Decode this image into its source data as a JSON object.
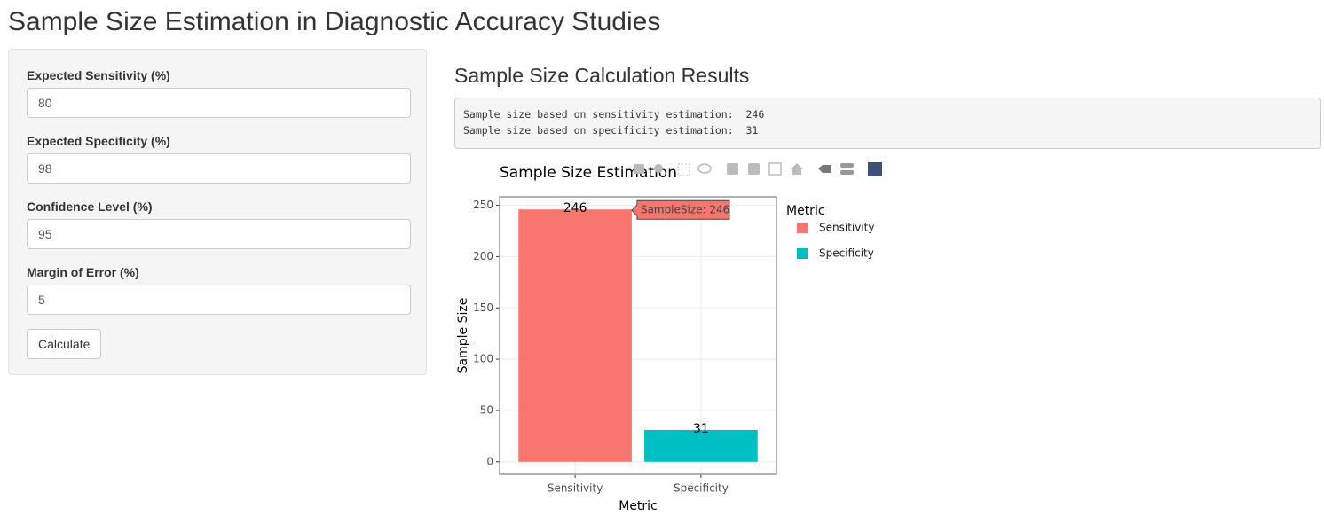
{
  "header": {
    "title": "Sample Size Estimation in Diagnostic Accuracy Studies"
  },
  "sidebar": {
    "inputs": [
      {
        "label": "Expected Sensitivity (%)",
        "value": 80
      },
      {
        "label": "Expected Specificity (%)",
        "value": 98
      },
      {
        "label": "Confidence Level (%)",
        "value": 95
      },
      {
        "label": "Margin of Error (%)",
        "value": 5
      }
    ],
    "button": "Calculate"
  },
  "results": {
    "title": "Sample Size Calculation Results",
    "output": [
      "Sample size based on sensitivity estimation:  246",
      "Sample size based on specificity estimation:  31"
    ]
  },
  "chart_data": {
    "type": "bar",
    "title": "Sample Size Estimation",
    "x_label": "Metric",
    "y_label": "Sample Size",
    "categories": [
      "Sensitivity",
      "Specificity"
    ],
    "series": [
      {
        "name": "Sensitivity",
        "color": "#F8766D",
        "values": [
          246,
          null
        ]
      },
      {
        "name": "Specificity",
        "color": "#00BFC4",
        "values": [
          null,
          31
        ]
      }
    ],
    "legend_title": "Metric",
    "tooltip": "SampleSize: 246",
    "ylim": [
      -12.3,
      258.3
    ],
    "yticks": [
      0,
      50,
      100,
      150,
      200,
      250
    ],
    "grid": true
  }
}
